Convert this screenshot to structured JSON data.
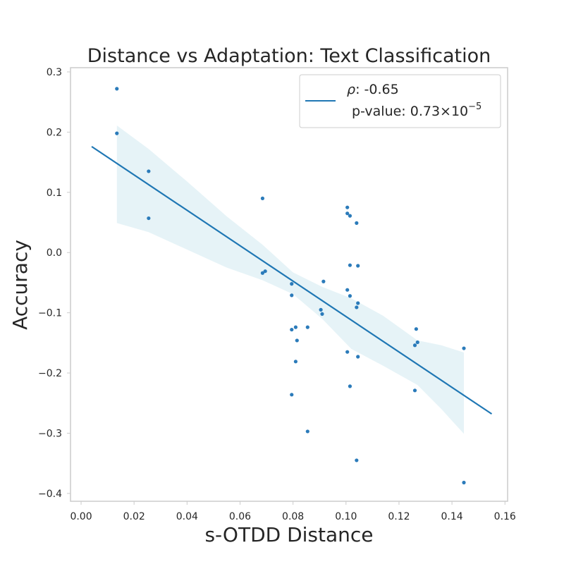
{
  "chart_data": {
    "type": "scatter",
    "title": "Distance vs Adaptation: Text Classification",
    "xlabel": "s-OTDD Distance",
    "ylabel": "Accuracy",
    "xlim": [
      -0.004,
      0.161
    ],
    "ylim": [
      -0.413,
      0.307
    ],
    "x_ticks": [
      0.0,
      0.02,
      0.04,
      0.06,
      0.08,
      0.1,
      0.12,
      0.14,
      0.16
    ],
    "x_tick_labels": [
      "0.00",
      "0.02",
      "0.04",
      "0.06",
      "0.08",
      "0.10",
      "0.12",
      "0.14",
      "0.16"
    ],
    "y_ticks": [
      -0.4,
      -0.3,
      -0.2,
      -0.1,
      0.0,
      0.1,
      0.2,
      0.3
    ],
    "y_tick_labels": [
      "−0.4",
      "−0.3",
      "−0.2",
      "−0.1",
      "0.0",
      "0.1",
      "0.2",
      "0.3"
    ],
    "grid": false,
    "legend_position": "top-right",
    "legend": {
      "rho_symbol": "ρ",
      "rho_text": ": -0.65",
      "pvalue_text": "p-value: 0.73×10",
      "pvalue_exponent": "−5"
    },
    "colors": {
      "points": "#2b7bba",
      "line": "#1f77b4",
      "band": "#add8e6",
      "frame": "#cccccc",
      "text": "#262626"
    },
    "series": [
      {
        "points": [
          [
            0.0135,
            0.272
          ],
          [
            0.0135,
            0.198
          ],
          [
            0.0255,
            0.135
          ],
          [
            0.0255,
            0.057
          ],
          [
            0.0685,
            0.09
          ],
          [
            0.0685,
            -0.034
          ],
          [
            0.0695,
            -0.031
          ],
          [
            0.0795,
            -0.052
          ],
          [
            0.0795,
            -0.071
          ],
          [
            0.0795,
            -0.128
          ],
          [
            0.0795,
            -0.236
          ],
          [
            0.081,
            -0.124
          ],
          [
            0.0815,
            -0.146
          ],
          [
            0.081,
            -0.181
          ],
          [
            0.0855,
            -0.124
          ],
          [
            0.0855,
            -0.297
          ],
          [
            0.0905,
            -0.095
          ],
          [
            0.091,
            -0.102
          ],
          [
            0.0915,
            -0.048
          ],
          [
            0.1005,
            0.075
          ],
          [
            0.1005,
            0.065
          ],
          [
            0.1015,
            0.061
          ],
          [
            0.104,
            0.049
          ],
          [
            0.1015,
            -0.021
          ],
          [
            0.1045,
            -0.022
          ],
          [
            0.1005,
            -0.062
          ],
          [
            0.1015,
            -0.072
          ],
          [
            0.104,
            -0.091
          ],
          [
            0.1045,
            -0.084
          ],
          [
            0.1005,
            -0.165
          ],
          [
            0.1045,
            -0.173
          ],
          [
            0.1015,
            -0.222
          ],
          [
            0.104,
            -0.345
          ],
          [
            0.1265,
            -0.127
          ],
          [
            0.127,
            -0.149
          ],
          [
            0.126,
            -0.154
          ],
          [
            0.126,
            -0.229
          ],
          [
            0.1445,
            -0.159
          ],
          [
            0.1445,
            -0.382
          ]
        ]
      }
    ],
    "regression": {
      "x": [
        0.004,
        0.155
      ],
      "y": [
        0.176,
        -0.268
      ]
    },
    "confidence_band": {
      "x": [
        0.0135,
        0.0255,
        0.04,
        0.055,
        0.0685,
        0.08,
        0.091,
        0.102,
        0.114,
        0.127,
        0.136,
        0.1445
      ],
      "upper": [
        0.211,
        0.172,
        0.118,
        0.06,
        0.013,
        -0.033,
        -0.057,
        -0.076,
        -0.105,
        -0.146,
        -0.154,
        -0.166
      ],
      "lower": [
        0.049,
        0.034,
        0.005,
        -0.025,
        -0.046,
        -0.069,
        -0.11,
        -0.16,
        -0.188,
        -0.22,
        -0.26,
        -0.301
      ]
    }
  }
}
